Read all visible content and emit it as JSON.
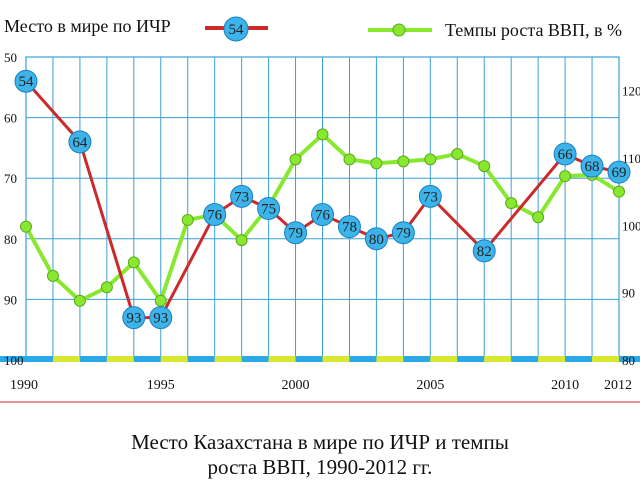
{
  "caption": {
    "line1": "Место Казахстана в мире по ИЧР и темпы",
    "line2": "роста ВВП, 1990-2012 гг."
  },
  "colors": {
    "hdi_line": "#cc2a2a",
    "hdi_badge": "#3cb4ea",
    "gdp_line": "#88e830",
    "grid": "#3a9fd6",
    "band_blue": "#2aa8e8",
    "band_yellow": "#d8e830"
  },
  "chart_data": {
    "type": "line",
    "x_ticks": [
      "1990",
      "1995",
      "2000",
      "2005",
      "2010",
      "2012"
    ],
    "xlim": [
      1990,
      2012
    ],
    "left_axis": {
      "ticks": [
        "50",
        "60",
        "70",
        "80",
        "90",
        "100"
      ],
      "range": [
        50,
        100
      ],
      "inverted": true
    },
    "right_axis": {
      "ticks": [
        "120",
        "110",
        "100",
        "90",
        "80"
      ],
      "range": [
        80,
        125
      ]
    },
    "grid": true,
    "legend": [
      {
        "label": "Место в мире по ИЧР",
        "marker_label": "54"
      },
      {
        "label": "Темпы роста ВВП, в %"
      }
    ],
    "series": [
      {
        "name": "Место в мире по ИЧР",
        "axis": "left",
        "points": [
          {
            "x": 1990,
            "y": 54,
            "label": "54"
          },
          {
            "x": 1992,
            "y": 64,
            "label": "64"
          },
          {
            "x": 1994,
            "y": 93,
            "label": "93"
          },
          {
            "x": 1995,
            "y": 93,
            "label": "93"
          },
          {
            "x": 1997,
            "y": 76,
            "label": "76"
          },
          {
            "x": 1998,
            "y": 73,
            "label": "73"
          },
          {
            "x": 1999,
            "y": 75,
            "label": "75"
          },
          {
            "x": 2000,
            "y": 79,
            "label": "79"
          },
          {
            "x": 2001,
            "y": 76,
            "label": "76"
          },
          {
            "x": 2002,
            "y": 78,
            "label": "78"
          },
          {
            "x": 2003,
            "y": 80,
            "label": "80"
          },
          {
            "x": 2004,
            "y": 79,
            "label": "79"
          },
          {
            "x": 2005,
            "y": 73,
            "label": "73"
          },
          {
            "x": 2007,
            "y": 82,
            "label": "82"
          },
          {
            "x": 2010,
            "y": 66,
            "label": "66"
          },
          {
            "x": 2011,
            "y": 68,
            "label": "68"
          },
          {
            "x": 2012,
            "y": 69,
            "label": "69"
          }
        ]
      },
      {
        "name": "Темпы роста ВВП, в %",
        "axis": "right",
        "points": [
          {
            "x": 1990,
            "y": 99.8
          },
          {
            "x": 1991,
            "y": 92.5
          },
          {
            "x": 1992,
            "y": 88.8
          },
          {
            "x": 1993,
            "y": 90.8
          },
          {
            "x": 1994,
            "y": 94.5
          },
          {
            "x": 1995,
            "y": 88.8
          },
          {
            "x": 1996,
            "y": 100.8
          },
          {
            "x": 1997,
            "y": 101.6
          },
          {
            "x": 1998,
            "y": 97.8
          },
          {
            "x": 1999,
            "y": 102.8
          },
          {
            "x": 2000,
            "y": 109.8
          },
          {
            "x": 2001,
            "y": 113.5
          },
          {
            "x": 2002,
            "y": 109.8
          },
          {
            "x": 2003,
            "y": 109.2
          },
          {
            "x": 2004,
            "y": 109.5
          },
          {
            "x": 2005,
            "y": 109.8
          },
          {
            "x": 2006,
            "y": 110.6
          },
          {
            "x": 2007,
            "y": 108.8
          },
          {
            "x": 2008,
            "y": 103.3
          },
          {
            "x": 2009,
            "y": 101.2
          },
          {
            "x": 2010,
            "y": 107.3
          },
          {
            "x": 2011,
            "y": 107.5
          },
          {
            "x": 2012,
            "y": 105.0
          }
        ]
      }
    ]
  }
}
